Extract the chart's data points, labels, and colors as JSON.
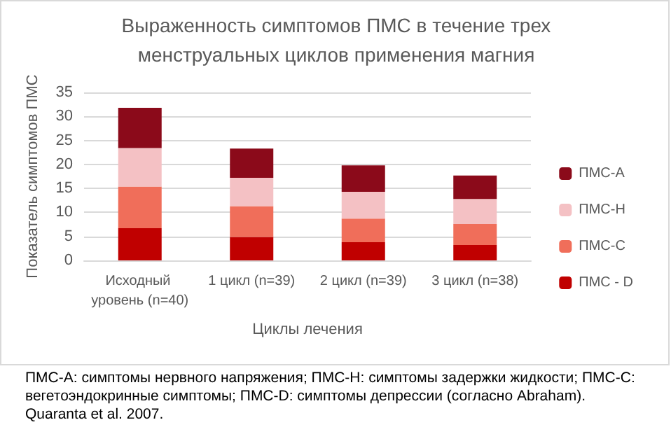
{
  "chart_data": {
    "type": "bar",
    "title": "Выраженность симптомов ПМС в течение трех менструальных циклов применения магния",
    "xlabel": "Циклы лечения",
    "ylabel": "Показатель симптомов ПМС",
    "categories": [
      "Исходный уровень (n=40)",
      "1 цикл (n=39)",
      "2 цикл (n=39)",
      "3 цикл (n=38)"
    ],
    "stacked": true,
    "series": [
      {
        "name": "ПМС - D",
        "color": "#c00000",
        "values": [
          6.7,
          4.9,
          3.8,
          3.2
        ]
      },
      {
        "name": "ПМС-С",
        "color": "#f06e5a",
        "values": [
          8.7,
          6.4,
          4.9,
          4.4
        ]
      },
      {
        "name": "ПМС-Н",
        "color": "#f4c1c4",
        "values": [
          8.0,
          5.9,
          5.6,
          5.2
        ]
      },
      {
        "name": "ПМС-А",
        "color": "#8b0a1a",
        "values": [
          8.4,
          6.1,
          5.5,
          4.9
        ]
      }
    ],
    "ylim": [
      0,
      35
    ],
    "yticks": [
      0,
      5,
      10,
      15,
      20,
      25,
      30,
      35
    ],
    "grid": "y",
    "legend": "right",
    "annotations": [
      "ПМС-А: симптомы нервного напряжения; ПМС-Н: симптомы задержки жидкости; ПМС-С: вегетоэндокринные симптомы; ПМС-D: симптомы депрессии (согласно Abraham).",
      "Quaranta et al. 2007."
    ]
  }
}
